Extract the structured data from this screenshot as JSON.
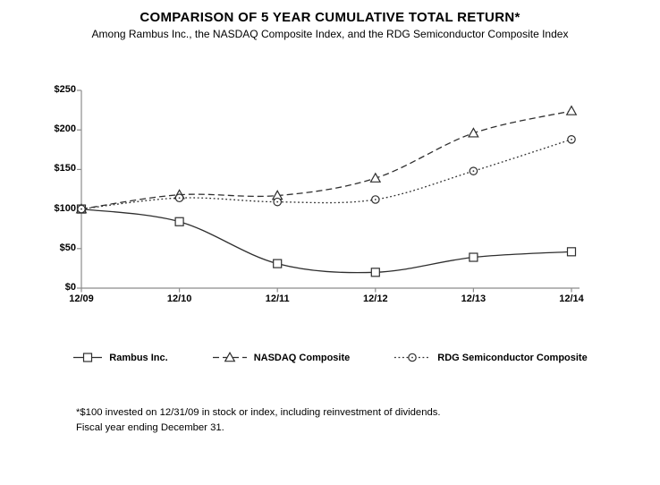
{
  "title": "COMPARISON OF 5 YEAR CUMULATIVE TOTAL RETURN*",
  "subtitle": "Among Rambus Inc., the NASDAQ  Composite Index, and the RDG Semiconductor Composite Index",
  "footnote": {
    "line1": "*$100 invested on 12/31/09 in stock or index, including reinvestment of dividends.",
    "line2": "Fiscal year ending December 31."
  },
  "chart_data": {
    "type": "line",
    "title": "COMPARISON OF 5 YEAR CUMULATIVE TOTAL RETURN*",
    "categories": [
      "12/09",
      "12/10",
      "12/11",
      "12/12",
      "12/13",
      "12/14"
    ],
    "series": [
      {
        "name": "Rambus Inc.",
        "marker": "square",
        "line_style": "solid",
        "values": [
          100,
          84,
          31,
          20,
          39,
          46
        ]
      },
      {
        "name": "NASDAQ Composite",
        "marker": "triangle",
        "line_style": "dashed",
        "values": [
          100,
          118,
          117,
          139,
          196,
          224
        ]
      },
      {
        "name": "RDG Semiconductor Composite",
        "marker": "circle",
        "line_style": "dotted",
        "values": [
          100,
          114,
          109,
          112,
          148,
          188
        ]
      }
    ],
    "xlabel": "",
    "ylabel": "",
    "ylim": [
      0,
      250
    ],
    "y_tick_values": [
      0,
      50,
      100,
      150,
      200,
      250
    ],
    "y_tick_labels": [
      "$0",
      "$50",
      "$100",
      "$150",
      "$200",
      "$250"
    ],
    "grid": false,
    "legend_position": "bottom",
    "axis_color": "#8c8c8c",
    "line_color": "#2e2e2e"
  }
}
